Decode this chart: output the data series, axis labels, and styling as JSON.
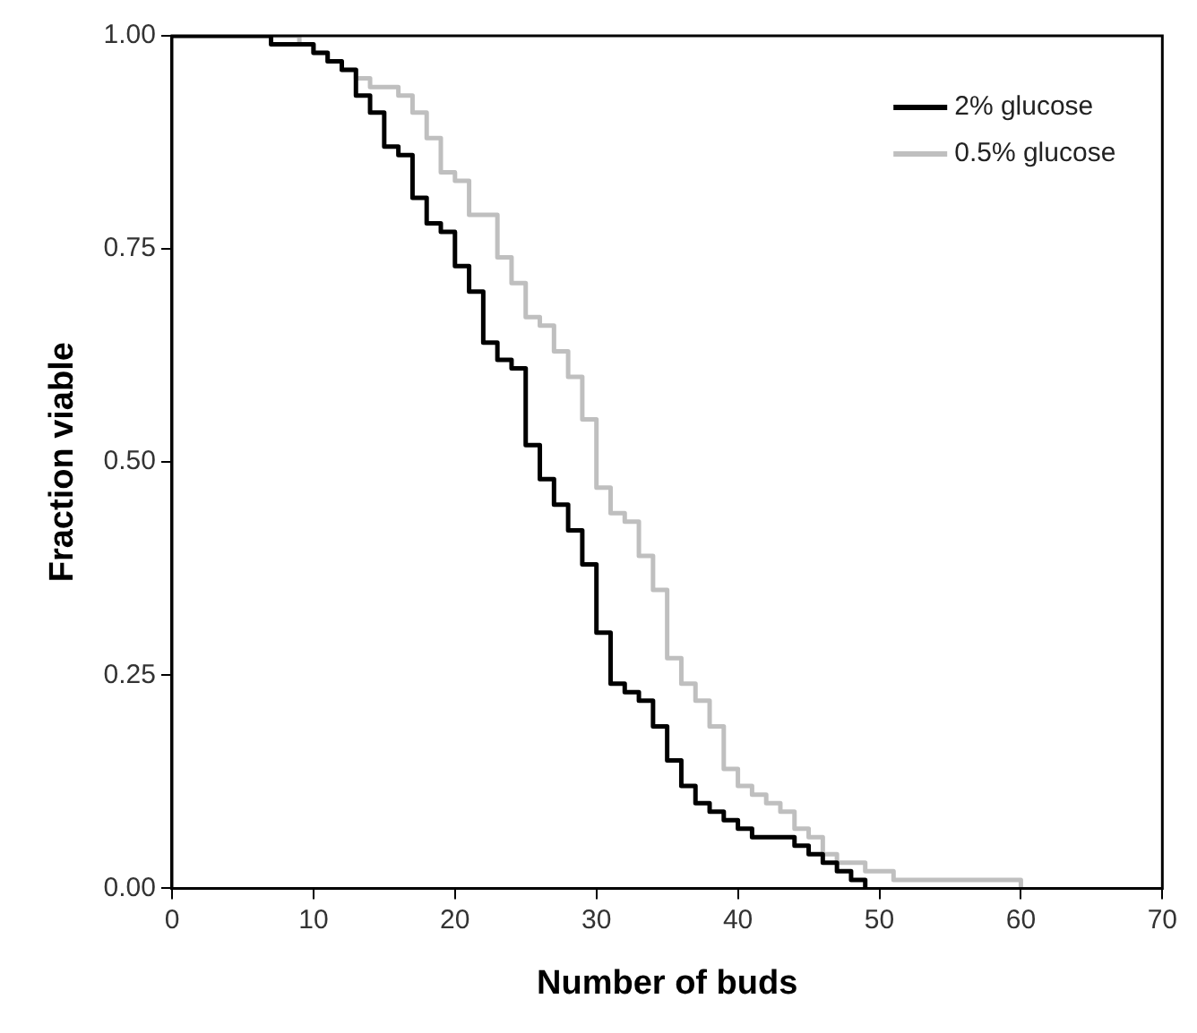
{
  "chart_data": {
    "type": "step",
    "xlabel": "Number of buds",
    "ylabel": "Fraction viable",
    "xlim": [
      0,
      70
    ],
    "xticks": [
      0,
      10,
      20,
      30,
      40,
      50,
      60,
      70
    ],
    "ylim": [
      0,
      1
    ],
    "yticks": [
      {
        "value": 0,
        "label": "0.00"
      },
      {
        "value": 0.25,
        "label": "0.25"
      },
      {
        "value": 0.5,
        "label": "0.50"
      },
      {
        "value": 0.75,
        "label": "0.75"
      },
      {
        "value": 1,
        "label": "1.00"
      }
    ],
    "grid": false,
    "legend": "top right",
    "marker": "none",
    "line_style": "solid",
    "series": [
      {
        "name": "2% glucose",
        "color": "#000000",
        "x": [
          0,
          7,
          10,
          11,
          12,
          13,
          14,
          15,
          16,
          17,
          18,
          19,
          20,
          21,
          22,
          23,
          24,
          25,
          26,
          27,
          28,
          29,
          30,
          31,
          32,
          33,
          34,
          35,
          36,
          37,
          38,
          39,
          40,
          41,
          44,
          45,
          46,
          47,
          48,
          49
        ],
        "values": [
          1,
          0.99,
          0.98,
          0.97,
          0.96,
          0.93,
          0.91,
          0.87,
          0.86,
          0.81,
          0.78,
          0.77,
          0.73,
          0.7,
          0.64,
          0.62,
          0.61,
          0.52,
          0.48,
          0.45,
          0.42,
          0.38,
          0.3,
          0.24,
          0.23,
          0.22,
          0.19,
          0.15,
          0.12,
          0.1,
          0.09,
          0.08,
          0.07,
          0.06,
          0.05,
          0.04,
          0.03,
          0.02,
          0.01,
          0
        ]
      },
      {
        "name": "0.5% glucose",
        "color": "#bfbfbf",
        "x": [
          0,
          9,
          10,
          11,
          12,
          13,
          14,
          16,
          17,
          18,
          19,
          20,
          21,
          23,
          24,
          25,
          26,
          27,
          28,
          29,
          30,
          31,
          32,
          33,
          34,
          35,
          36,
          37,
          38,
          39,
          40,
          41,
          42,
          43,
          44,
          45,
          46,
          47,
          49,
          51,
          60
        ],
        "values": [
          1,
          0.99,
          0.98,
          0.97,
          0.96,
          0.95,
          0.94,
          0.93,
          0.91,
          0.88,
          0.84,
          0.83,
          0.79,
          0.74,
          0.71,
          0.67,
          0.66,
          0.63,
          0.6,
          0.55,
          0.47,
          0.44,
          0.43,
          0.39,
          0.35,
          0.27,
          0.24,
          0.22,
          0.19,
          0.14,
          0.12,
          0.11,
          0.1,
          0.09,
          0.07,
          0.06,
          0.04,
          0.03,
          0.02,
          0.01,
          0
        ]
      }
    ]
  }
}
